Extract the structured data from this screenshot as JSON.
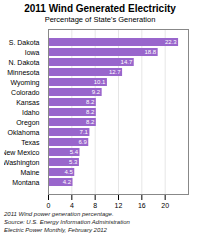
{
  "chart_data": {
    "type": "bar",
    "orientation": "horizontal",
    "title": "2011 Wind Generated Electricity",
    "subtitle": "Percentage of State's Generation",
    "annotations": [
      "2011 Wind power generation percentage.",
      "Source: U.S. Energy Information Administration",
      "Electric Power Monthly, February 2012"
    ],
    "categories": [
      "S. Dakota",
      "Iowa",
      "N. Dakota",
      "Minnesota",
      "Wyoming",
      "Colorado",
      "Kansas",
      "Idaho",
      "Oregon",
      "Oklahoma",
      "Texas",
      "New Mexico",
      "Washington",
      "Maine",
      "Montana"
    ],
    "values": [
      22.3,
      18.8,
      14.7,
      12.7,
      10.1,
      9.2,
      8.2,
      8.2,
      8.2,
      7.1,
      6.9,
      5.4,
      5.3,
      4.5,
      4.2
    ],
    "color": "#9966cc",
    "xlim": [
      0,
      24
    ],
    "xticks": [
      0,
      4,
      8,
      12,
      16,
      20
    ],
    "grid": true,
    "data_labels": true
  }
}
